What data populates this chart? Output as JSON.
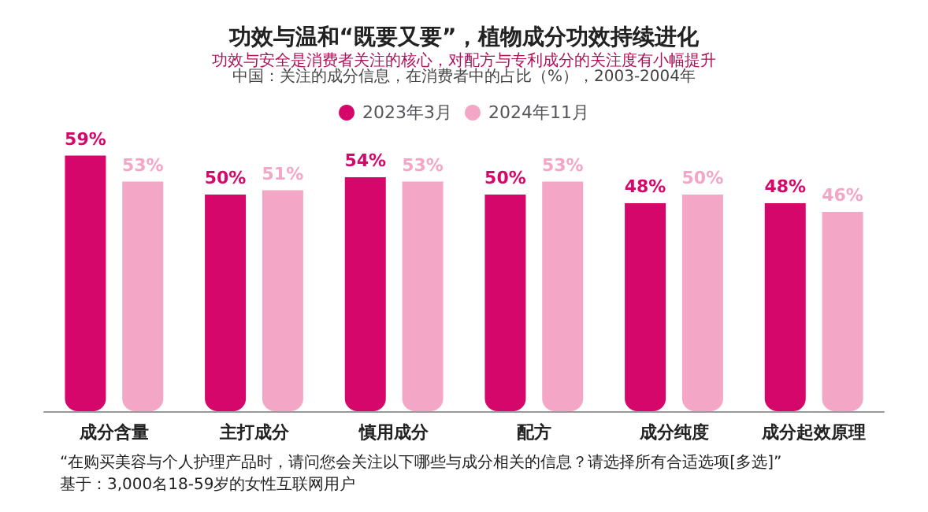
{
  "chart_data": {
    "type": "bar",
    "title": "功效与温和“既要又要”，植物成分功效持续进化",
    "subtitle": "功效与安全是消费者关注的核心，对配方与专利成分的关注度有小幅提升",
    "annotations": [
      "中国：关注的成分信息，在消费者中的占比（%），2003-2004年",
      "“在购买美容与个人护理产品时，请问您会关注以下哪些与成分相关的信息？请选择所有合适选项[多选]”",
      "基于：3,000名18-59岁的女性互联网用户"
    ],
    "categories": [
      "成分含量",
      "主打成分",
      "慎用成分",
      "配方",
      "成分纯度",
      "成分起效原理"
    ],
    "series": [
      {
        "name": "2023年3月",
        "color": "#d6076a",
        "values": [
          59,
          50,
          54,
          50,
          48,
          48
        ],
        "value_labels": [
          "59%",
          "50%",
          "54%",
          "50%",
          "48%",
          "48%"
        ]
      },
      {
        "name": "2024年11月",
        "color": "#f4a6c6",
        "values": [
          53,
          51,
          53,
          53,
          50,
          46
        ],
        "value_labels": [
          "53%",
          "51%",
          "53%",
          "53%",
          "50%",
          "46%"
        ]
      }
    ],
    "legend": "top"
  }
}
